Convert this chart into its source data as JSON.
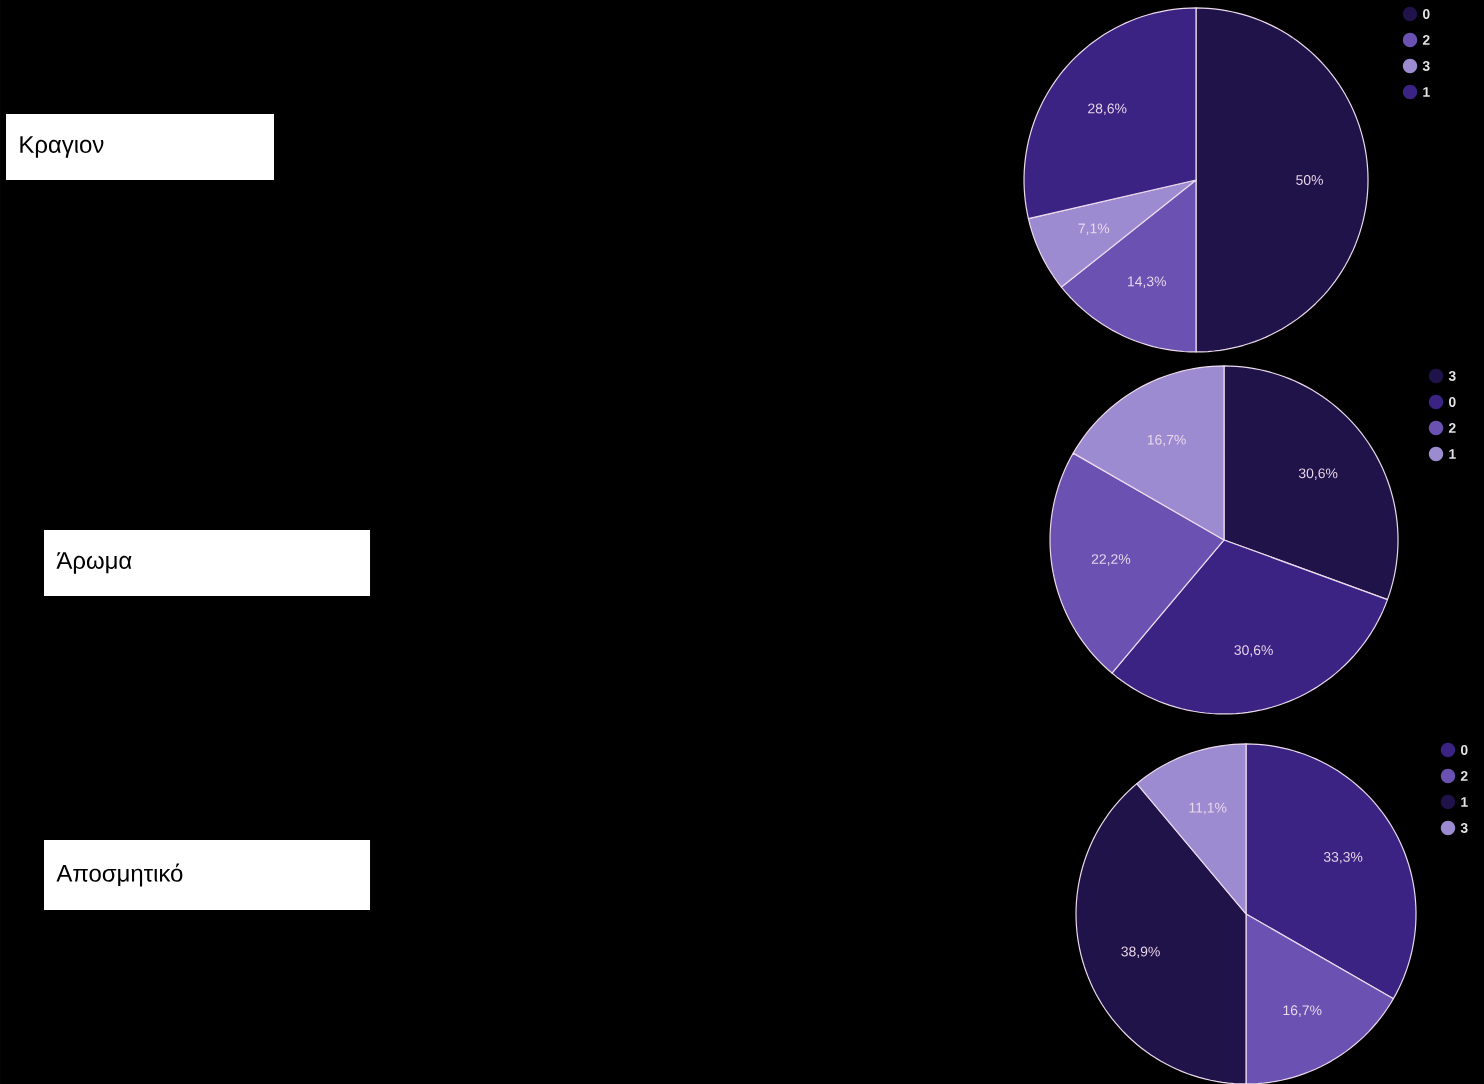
{
  "chart_data": [
    {
      "type": "pie",
      "annotations": [
        "Κραγιον"
      ],
      "categories": [
        "0",
        "2",
        "3",
        "1"
      ],
      "values": [
        50,
        14.3,
        7.1,
        28.6
      ],
      "colors": [
        "#20134a",
        "#6b52b2",
        "#9c8bd0",
        "#3b2383"
      ],
      "value_labels": [
        "50%",
        "14,3%",
        "7,1%",
        "28,6%"
      ],
      "legend": "top right"
    },
    {
      "type": "pie",
      "annotations": [
        "Άρωμα"
      ],
      "categories": [
        "3",
        "0",
        "2",
        "1"
      ],
      "values": [
        30.6,
        30.6,
        22.2,
        16.7
      ],
      "colors": [
        "#20134a",
        "#3b2383",
        "#6b52b2",
        "#9c8bd0"
      ],
      "value_labels": [
        "30,6%",
        "30,6%",
        "22,2%",
        "16,7%"
      ],
      "legend": "top right"
    },
    {
      "type": "pie",
      "annotations": [
        "Αποσμητικό"
      ],
      "categories": [
        "0",
        "2",
        "1",
        "3"
      ],
      "values": [
        33.3,
        16.7,
        38.9,
        11.1
      ],
      "colors": [
        "#3b2383",
        "#6b52b2",
        "#20134a",
        "#9c8bd0"
      ],
      "value_labels": [
        "33,3%",
        "16,7%",
        "38,9%",
        "11,1%"
      ],
      "legend": "top right"
    }
  ]
}
